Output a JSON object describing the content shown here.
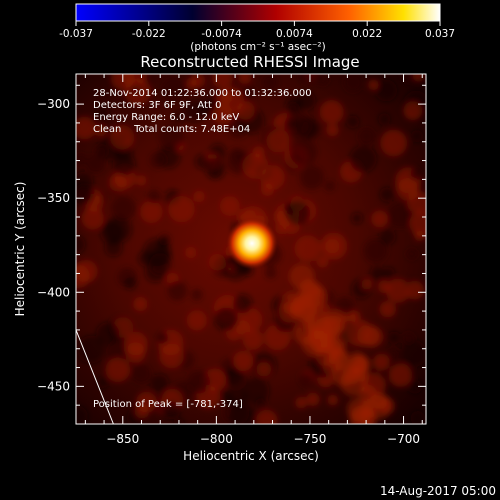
{
  "colorbar": {
    "min_label": "-0.037",
    "max_label": "0.037",
    "tick_labels": [
      "-0.037",
      "-0.022",
      "-0.0074",
      "0.0074",
      "0.022",
      "0.037"
    ],
    "unit_label": "(photons cm⁻² s⁻¹ asec⁻²)",
    "colormap_stops": [
      "#0000ff",
      "#000030",
      "#b00000",
      "#ff6000",
      "#ffe000",
      "#ffffff"
    ]
  },
  "chart_data": {
    "type": "heatmap",
    "title": "Reconstructed RHESSI Image",
    "xlabel": "Heliocentric X (arcsec)",
    "ylabel": "Heliocentric Y (arcsec)",
    "xlim": [
      -875,
      -688
    ],
    "ylim": [
      -470,
      -284
    ],
    "xticks": [
      -850,
      -800,
      -750,
      -700
    ],
    "yticks": [
      -450,
      -400,
      -350,
      -300
    ],
    "peak": {
      "x": -781,
      "y": -374
    },
    "annotations": [
      "28-Nov-2014 01:22:36.000 to 01:32:36.000",
      "Detectors: 3F 6F 9F, Att 0",
      "Energy Range: 6.0 - 12.0 keV",
      "Clean    Total counts: 7.48E+04"
    ],
    "peak_label": "Position of Peak = [-781,-374]",
    "limb_line": [
      [
        -875,
        -420
      ],
      [
        -855,
        -470
      ]
    ]
  },
  "footer": {
    "timestamp": "14-Aug-2017 05:00"
  }
}
